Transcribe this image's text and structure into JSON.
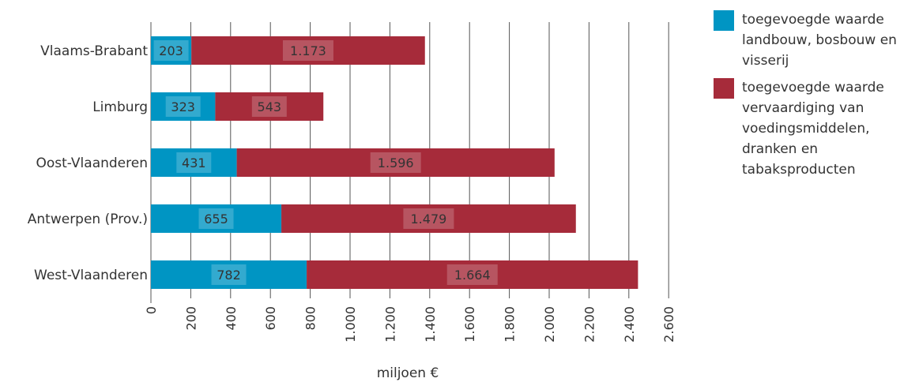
{
  "chart_data": {
    "type": "bar",
    "orientation": "horizontal",
    "stacked": true,
    "categories": [
      "Vlaams-Brabant",
      "Limburg",
      "Oost-Vlaanderen",
      "Antwerpen (Prov.)",
      "West-Vlaanderen"
    ],
    "series": [
      {
        "name": "toegevoegde waarde landbouw, bosbouw en visserij",
        "color": "#0095c3",
        "values": [
          203,
          323,
          431,
          655,
          782
        ],
        "labels": [
          "203",
          "323",
          "431",
          "655",
          "782"
        ]
      },
      {
        "name": "toegevoegde waarde vervaardiging van voedingsmiddelen, dranken en tabaksproducten",
        "color": "#a62b3a",
        "values": [
          1173,
          543,
          1596,
          1479,
          1664
        ],
        "labels": [
          "1.173",
          "543",
          "1.596",
          "1.479",
          "1.664"
        ]
      }
    ],
    "xlim": [
      0,
      2600
    ],
    "ticks": [
      0,
      200,
      400,
      600,
      800,
      1000,
      1200,
      1400,
      1600,
      1800,
      2000,
      2200,
      2400,
      2600
    ],
    "tick_labels": [
      "0",
      "200",
      "400",
      "600",
      "800",
      "1.000",
      "1.200",
      "1.400",
      "1.600",
      "1.800",
      "2.000",
      "2.200",
      "2.400",
      "2.600"
    ],
    "xlabel": "miljoen €",
    "grid": true,
    "legend_position": "right"
  }
}
